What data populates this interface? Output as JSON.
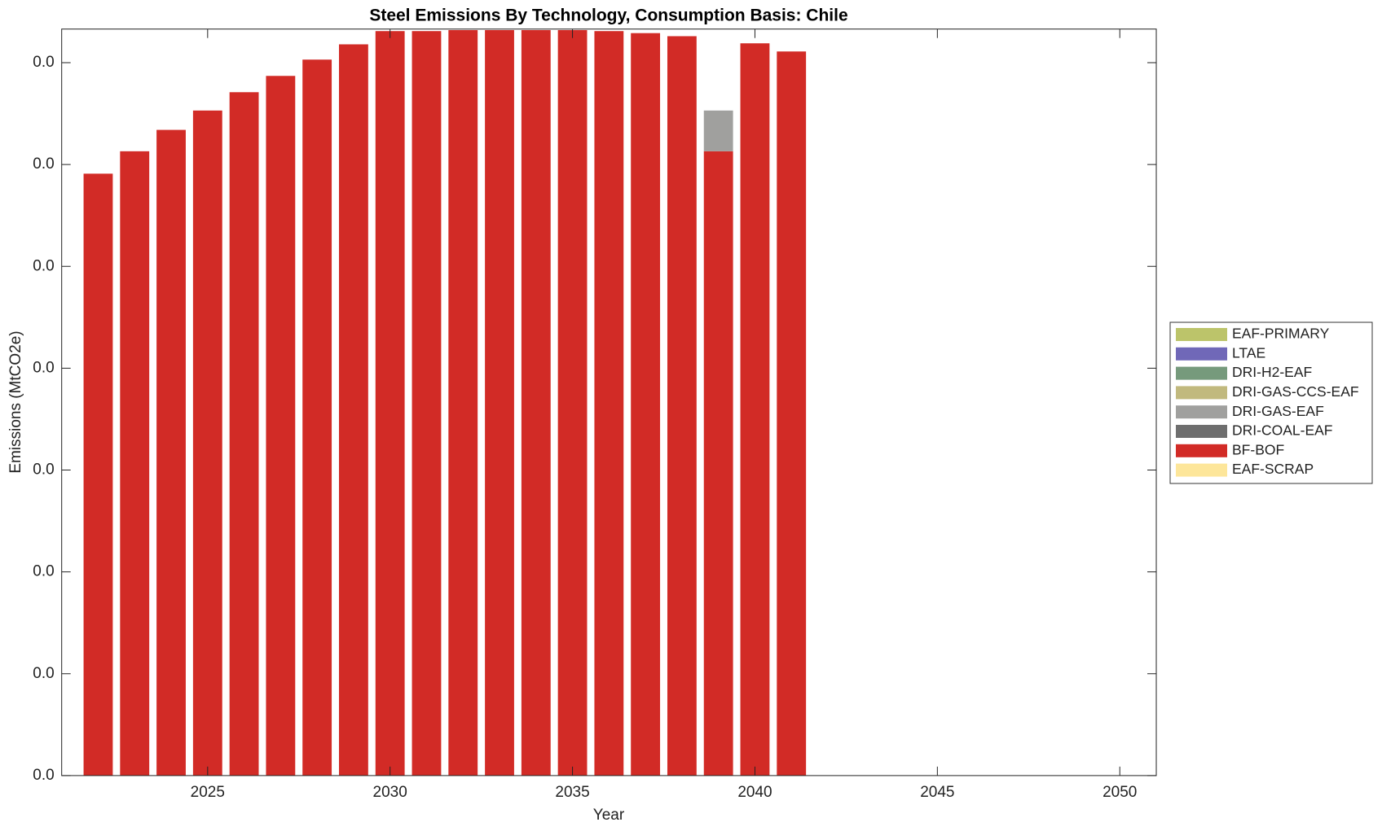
{
  "chart_data": {
    "type": "stacked_bar",
    "title": "Steel Emissions By Technology, Consumption Basis: Chile",
    "x_label": "Year",
    "y_label": "Emissions (MtCO2e)",
    "categories": [
      2022,
      2023,
      2024,
      2025,
      2026,
      2027,
      2028,
      2029,
      2030,
      2031,
      2032,
      2033,
      2034,
      2035,
      2036,
      2037,
      2038,
      2039,
      2040,
      2041
    ],
    "xlim": [
      2021,
      2051
    ],
    "xticks": [
      2025,
      2030,
      2035,
      2040,
      2045,
      2050
    ],
    "ylim": [
      0,
      0.0733
    ],
    "yticks": [
      {
        "value": 0,
        "label": "0.0"
      },
      {
        "value": 0.01,
        "label": "0.0"
      },
      {
        "value": 0.02,
        "label": "0.0"
      },
      {
        "value": 0.03,
        "label": "0.0"
      },
      {
        "value": 0.04,
        "label": "0.0"
      },
      {
        "value": 0.05,
        "label": "0.0"
      },
      {
        "value": 0.06,
        "label": "0.0"
      },
      {
        "value": 0.07,
        "label": "0.0"
      }
    ],
    "legend": "outside-right",
    "series": [
      {
        "name": "EAF-PRIMARY",
        "color": "#bcc46a",
        "values": [
          0,
          0,
          0,
          0,
          0,
          0,
          0,
          0,
          0,
          0,
          0,
          0,
          0,
          0,
          0,
          0,
          0,
          0,
          0,
          0
        ]
      },
      {
        "name": "LTAE",
        "color": "#7068b8",
        "values": [
          0,
          0,
          0,
          0,
          0,
          0,
          0,
          0,
          0,
          0,
          0,
          0,
          0,
          0,
          0,
          0,
          0,
          0,
          0,
          0
        ]
      },
      {
        "name": "DRI-H2-EAF",
        "color": "#769a7c",
        "values": [
          0,
          0,
          0,
          0,
          0,
          0,
          0,
          0,
          0,
          0,
          0,
          0,
          0,
          0,
          0,
          0,
          0,
          0,
          0,
          0
        ]
      },
      {
        "name": "DRI-GAS-CCS-EAF",
        "color": "#c1b97e",
        "values": [
          0,
          0,
          0,
          0,
          0,
          0,
          0,
          0,
          0,
          0,
          0,
          0,
          0,
          0,
          0,
          0,
          0,
          0,
          0,
          0
        ]
      },
      {
        "name": "DRI-GAS-EAF",
        "color": "#a0a09e",
        "values": [
          0,
          0,
          0,
          0,
          0,
          0,
          0,
          0,
          0,
          0,
          0,
          0,
          0,
          0,
          0,
          0,
          0,
          0.004,
          0,
          0
        ]
      },
      {
        "name": "DRI-COAL-EAF",
        "color": "#6e6e6e",
        "values": [
          0,
          0,
          0,
          0,
          0,
          0,
          0,
          0,
          0,
          0,
          0,
          0,
          0,
          0,
          0,
          0,
          0,
          0,
          0,
          0
        ]
      },
      {
        "name": "BF-BOF",
        "color": "#d22b26",
        "values": [
          0.0591,
          0.0613,
          0.0634,
          0.0653,
          0.0671,
          0.0687,
          0.0703,
          0.0718,
          0.0731,
          0.0731,
          0.0732,
          0.0732,
          0.0732,
          0.0732,
          0.0731,
          0.0729,
          0.0726,
          0.0613,
          0.0719,
          0.0711
        ]
      },
      {
        "name": "EAF-SCRAP",
        "color": "#fde69a",
        "values": [
          0,
          0,
          0,
          0,
          0,
          0,
          0,
          0,
          0,
          0,
          0,
          0,
          0,
          0,
          0,
          0,
          0,
          0,
          0,
          0
        ]
      }
    ]
  }
}
